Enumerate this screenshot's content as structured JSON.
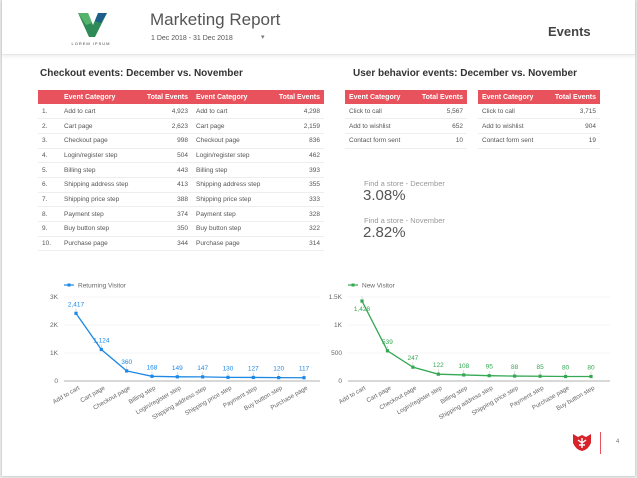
{
  "header": {
    "title": "Marketing Report",
    "date_range": "1 Dec 2018 - 31 Dec 2018",
    "logo_text": "LOREM IPSUM",
    "section": "Events"
  },
  "checkout": {
    "title": "Checkout events: December vs. November",
    "col_category": "Event Category",
    "col_total": "Total Events",
    "rows": [
      {
        "n": "1.",
        "dec_cat": "Add to cart",
        "dec_val": "4,923",
        "nov_cat": "Add to cart",
        "nov_val": "4,298"
      },
      {
        "n": "2.",
        "dec_cat": "Cart page",
        "dec_val": "2,623",
        "nov_cat": "Cart page",
        "nov_val": "2,159"
      },
      {
        "n": "3.",
        "dec_cat": "Checkout page",
        "dec_val": "998",
        "nov_cat": "Checkout page",
        "nov_val": "836"
      },
      {
        "n": "4.",
        "dec_cat": "Login/register step",
        "dec_val": "504",
        "nov_cat": "Login/register step",
        "nov_val": "462"
      },
      {
        "n": "5.",
        "dec_cat": "Billing step",
        "dec_val": "443",
        "nov_cat": "Billing step",
        "nov_val": "393"
      },
      {
        "n": "6.",
        "dec_cat": "Shipping address step",
        "dec_val": "413",
        "nov_cat": "Shipping address step",
        "nov_val": "355"
      },
      {
        "n": "7.",
        "dec_cat": "Shipping price step",
        "dec_val": "388",
        "nov_cat": "Shipping price step",
        "nov_val": "333"
      },
      {
        "n": "8.",
        "dec_cat": "Payment step",
        "dec_val": "374",
        "nov_cat": "Payment step",
        "nov_val": "328"
      },
      {
        "n": "9.",
        "dec_cat": "Buy button step",
        "dec_val": "350",
        "nov_cat": "Buy button step",
        "nov_val": "322"
      },
      {
        "n": "10.",
        "dec_cat": "Purchase page",
        "dec_val": "344",
        "nov_cat": "Purchase page",
        "nov_val": "314"
      }
    ]
  },
  "behavior": {
    "title": "User behavior events: December vs. November",
    "col_category": "Event Category",
    "col_total": "Total Events",
    "december": [
      {
        "cat": "Click to call",
        "val": "5,567"
      },
      {
        "cat": "Add to wishlist",
        "val": "652"
      },
      {
        "cat": "Contact form sent",
        "val": "10"
      }
    ],
    "november": [
      {
        "cat": "Click to call",
        "val": "3,715"
      },
      {
        "cat": "Add to wishlist",
        "val": "904"
      },
      {
        "cat": "Contact form sent",
        "val": "19"
      }
    ]
  },
  "kpis": [
    {
      "label": "Find a store - December",
      "value": "3.08%"
    },
    {
      "label": "Find a store - November",
      "value": "2.82%"
    }
  ],
  "page_number": "4",
  "colors": {
    "accent": "#e8525c",
    "returning": "#1e88e5",
    "new": "#34a853"
  },
  "chart_data": [
    {
      "type": "line",
      "legend_position": "top-left",
      "grid": true,
      "categories": [
        "Add to cart",
        "Cart page",
        "Checkout page",
        "Billing step",
        "Login/register step",
        "Shipping address step",
        "Shipping price step",
        "Payment step",
        "Buy button step",
        "Purchase page"
      ],
      "series": [
        {
          "name": "Returning Visitor",
          "values": [
            2417,
            1124,
            360,
            168,
            149,
            147,
            130,
            127,
            120,
            117
          ],
          "labels": [
            "2,417",
            "1,124",
            "360",
            "168",
            "149",
            "147",
            "130",
            "127",
            "120",
            "117"
          ]
        }
      ],
      "ylim": [
        0,
        3000
      ],
      "yticks": [
        {
          "v": 0,
          "l": "0"
        },
        {
          "v": 1000,
          "l": "1K"
        },
        {
          "v": 2000,
          "l": "2K"
        },
        {
          "v": 3000,
          "l": "3K"
        }
      ]
    },
    {
      "type": "line",
      "legend_position": "top-left",
      "grid": true,
      "categories": [
        "Add to cart",
        "Cart page",
        "Checkout page",
        "Login/register step",
        "Billing step",
        "Shipping address step",
        "Shipping price step",
        "Payment step",
        "Purchase page",
        "Buy button step"
      ],
      "series": [
        {
          "name": "New Visitor",
          "values": [
            1428,
            539,
            247,
            122,
            108,
            95,
            88,
            85,
            80,
            80
          ],
          "labels": [
            "1,428",
            "539",
            "247",
            "122",
            "108",
            "95",
            "88",
            "85",
            "80",
            "80"
          ]
        }
      ],
      "ylim": [
        0,
        1500
      ],
      "yticks": [
        {
          "v": 0,
          "l": "0"
        },
        {
          "v": 500,
          "l": "500"
        },
        {
          "v": 1000,
          "l": "1K"
        },
        {
          "v": 1500,
          "l": "1.5K"
        }
      ]
    }
  ]
}
